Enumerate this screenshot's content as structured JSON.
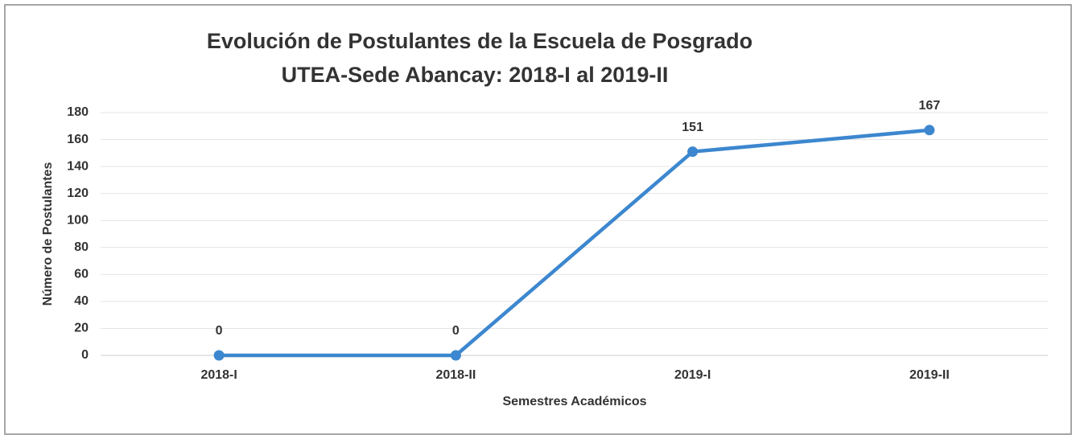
{
  "chart_data": {
    "type": "line",
    "title": [
      "Evolución de Postulantes de la Escuela de Posgrado",
      "UTEA-Sede Abancay: 2018-I al 2019-II"
    ],
    "x_label": "Semestres Académicos",
    "y_label": "Número de Postulantes",
    "categories": [
      "2018-I",
      "2018-II",
      "2019-I",
      "2019-II"
    ],
    "values": [
      0,
      0,
      151,
      167
    ],
    "color": "#3c87cf",
    "ylim": [
      0,
      180
    ],
    "yticks": [
      0,
      20,
      40,
      60,
      80,
      100,
      120,
      140,
      160,
      180
    ],
    "grid": true
  }
}
